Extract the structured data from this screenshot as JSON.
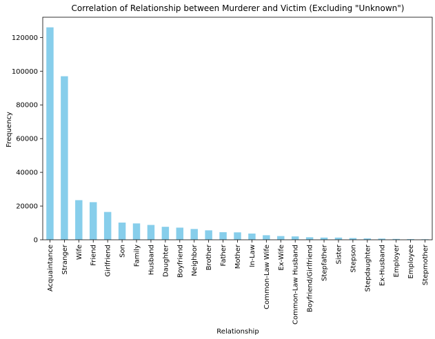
{
  "chart_data": {
    "type": "bar",
    "title": "Correlation of Relationship between Murderer and Victim (Excluding \"Unknown\")",
    "xlabel": "Relationship",
    "ylabel": "Frequency",
    "ylim": [
      0,
      132000
    ],
    "yticks": [
      0,
      20000,
      40000,
      60000,
      80000,
      100000,
      120000
    ],
    "grid": false,
    "bar_color": "#87ceeb",
    "categories": [
      "Acquaintance",
      "Stranger",
      "Wife",
      "Friend",
      "Girlfriend",
      "Son",
      "Family",
      "Husband",
      "Daughter",
      "Boyfriend",
      "Neighbor",
      "Brother",
      "Father",
      "Mother",
      "In-Law",
      "Common-Law Wife",
      "Ex-Wife",
      "Common-Law Husband",
      "Boyfriend/Girlfriend",
      "Stepfather",
      "Sister",
      "Stepson",
      "Stepdaughter",
      "Ex-Husband",
      "Employer",
      "Employee",
      "Stepmother"
    ],
    "values": [
      126000,
      97000,
      23500,
      22300,
      16500,
      10200,
      9700,
      8800,
      7700,
      7200,
      6400,
      5600,
      4500,
      4400,
      3700,
      2700,
      2200,
      2000,
      1500,
      1300,
      1300,
      1000,
      800,
      700,
      500,
      400,
      300
    ]
  }
}
